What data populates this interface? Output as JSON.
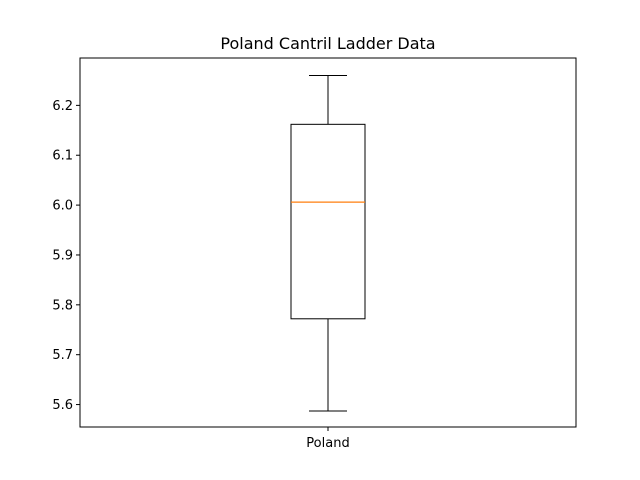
{
  "chart_data": {
    "type": "box",
    "title": "Poland Cantril Ladder Data",
    "xlabel": "",
    "ylabel": "",
    "categories": [
      "Poland"
    ],
    "ylim": [
      5.555,
      6.295
    ],
    "yticks": [
      5.6,
      5.7,
      5.8,
      5.9,
      6.0,
      6.1,
      6.2
    ],
    "ytick_labels": [
      "5.6",
      "5.7",
      "5.8",
      "5.9",
      "6.0",
      "6.1",
      "6.2"
    ],
    "boxes": [
      {
        "name": "Poland",
        "whisker_low": 5.587,
        "q1": 5.772,
        "median": 6.006,
        "q3": 6.162,
        "whisker_high": 6.26
      }
    ],
    "grid": false,
    "colors": {
      "box": "#000000",
      "median": "#ff7f0e",
      "axes": "#000000"
    }
  }
}
